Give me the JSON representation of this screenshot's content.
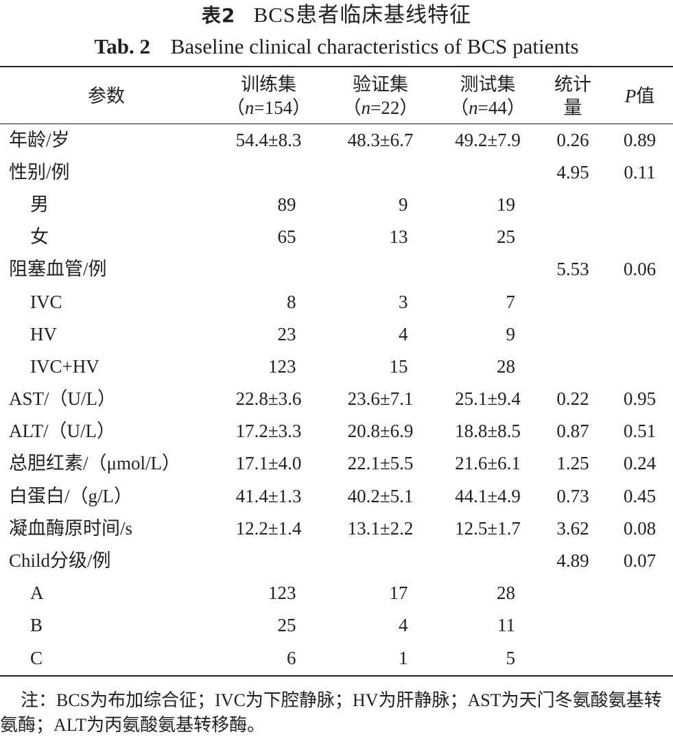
{
  "caption": {
    "cn_label": "表2",
    "cn_title": "BCS患者临床基线特征",
    "en_label": "Tab. 2",
    "en_title": "Baseline clinical characteristics of BCS patients"
  },
  "table": {
    "headers": [
      {
        "line1": "参数",
        "line2": ""
      },
      {
        "line1": "训练集",
        "line2": "（n=154）"
      },
      {
        "line1": "验证集",
        "line2": "（n=22）"
      },
      {
        "line1": "测试集",
        "line2": "（n=44）"
      },
      {
        "line1": "统计",
        "line2": "量"
      },
      {
        "line1": "P值",
        "line2": ""
      }
    ],
    "rows": [
      {
        "param": "年龄/岁",
        "sub": false,
        "train": "54.4±8.3",
        "valid": "48.3±6.7",
        "test": "49.2±7.9",
        "stat": "0.26",
        "p": "0.89"
      },
      {
        "param": "性别/例",
        "sub": false,
        "train": "",
        "valid": "",
        "test": "",
        "stat": "4.95",
        "p": "0.11"
      },
      {
        "param": "男",
        "sub": true,
        "train": "89",
        "valid": "9",
        "test": "19",
        "stat": "",
        "p": ""
      },
      {
        "param": "女",
        "sub": true,
        "train": "65",
        "valid": "13",
        "test": "25",
        "stat": "",
        "p": ""
      },
      {
        "param": "阻塞血管/例",
        "sub": false,
        "train": "",
        "valid": "",
        "test": "",
        "stat": "5.53",
        "p": "0.06"
      },
      {
        "param": "IVC",
        "sub": true,
        "train": "8",
        "valid": "3",
        "test": "7",
        "stat": "",
        "p": ""
      },
      {
        "param": "HV",
        "sub": true,
        "train": "23",
        "valid": "4",
        "test": "9",
        "stat": "",
        "p": ""
      },
      {
        "param": "IVC+HV",
        "sub": true,
        "train": "123",
        "valid": "15",
        "test": "28",
        "stat": "",
        "p": ""
      },
      {
        "param": "AST/（U/L）",
        "sub": false,
        "train": "22.8±3.6",
        "valid": "23.6±7.1",
        "test": "25.1±9.4",
        "stat": "0.22",
        "p": "0.95"
      },
      {
        "param": "ALT/（U/L）",
        "sub": false,
        "train": "17.2±3.3",
        "valid": "20.8±6.9",
        "test": "18.8±8.5",
        "stat": "0.87",
        "p": "0.51"
      },
      {
        "param": "总胆红素/（μmol/L）",
        "sub": false,
        "train": "17.1±4.0",
        "valid": "22.1±5.5",
        "test": "21.6±6.1",
        "stat": "1.25",
        "p": "0.24"
      },
      {
        "param": "白蛋白/（g/L）",
        "sub": false,
        "train": "41.4±1.3",
        "valid": "40.2±5.1",
        "test": "44.1±4.9",
        "stat": "0.73",
        "p": "0.45"
      },
      {
        "param": "凝血酶原时间/s",
        "sub": false,
        "train": "12.2±1.4",
        "valid": "13.1±2.2",
        "test": "12.5±1.7",
        "stat": "3.62",
        "p": "0.08"
      },
      {
        "param": "Child分级/例",
        "sub": false,
        "train": "",
        "valid": "",
        "test": "",
        "stat": "4.89",
        "p": "0.07"
      },
      {
        "param": "A",
        "sub": true,
        "train": "123",
        "valid": "17",
        "test": "28",
        "stat": "",
        "p": ""
      },
      {
        "param": "B",
        "sub": true,
        "train": "25",
        "valid": "4",
        "test": "11",
        "stat": "",
        "p": ""
      },
      {
        "param": "C",
        "sub": true,
        "train": "6",
        "valid": "1",
        "test": "5",
        "stat": "",
        "p": ""
      }
    ]
  },
  "note": "注：BCS为布加综合征；IVC为下腔静脉；HV为肝静脉；AST为天门冬氨酸氨基转氨酶；ALT为丙氨酸氨基转移酶。"
}
